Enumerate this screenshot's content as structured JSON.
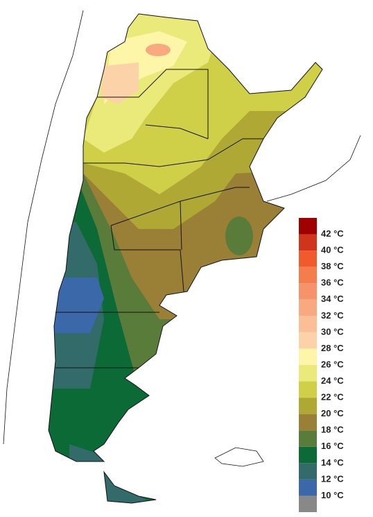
{
  "legend": {
    "labels": [
      "42 °C",
      "40 °C",
      "38 °C",
      "36 °C",
      "34 °C",
      "32 °C",
      "30 °C",
      "28 °C",
      "26 °C",
      "24 °C",
      "22 °C",
      "20 °C",
      "18 °C",
      "16 °C",
      "14 °C",
      "12 °C",
      "10 °C"
    ],
    "colors": [
      "#a00000",
      "#d0341a",
      "#f05a2c",
      "#f57c4c",
      "#f7936a",
      "#f9a980",
      "#fbbf98",
      "#fcd3a8",
      "#fdf6a8",
      "#eaea7a",
      "#cfcf48",
      "#b0a834",
      "#9a8036",
      "#5a7c3a",
      "#0b6a36",
      "#336a6a",
      "#3a68a8",
      "#888888"
    ]
  }
}
